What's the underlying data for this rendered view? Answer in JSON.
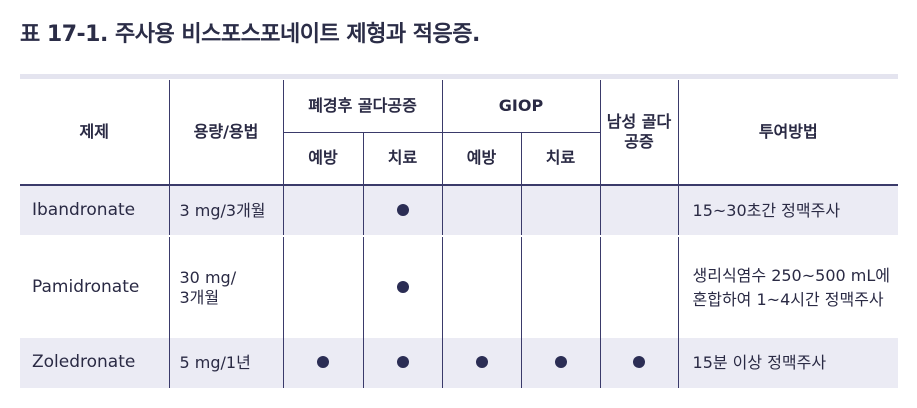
{
  "caption": "표 17-1. 주사용 비스포스포네이트 제형과 적응증.",
  "headers": {
    "agent": "제제",
    "dose": "용량/용법",
    "pmo": "폐경후 골다공증",
    "giop": "GIOP",
    "male": "남성 골다공증",
    "admin": "투여방법",
    "prevent": "예방",
    "treat": "치료"
  },
  "rows": [
    {
      "name": "Ibandronate",
      "dose": "3 mg/3개월",
      "pmo_prevent": false,
      "pmo_treat": true,
      "giop_prevent": false,
      "giop_treat": false,
      "male": false,
      "admin": "15~30초간 정맥주사"
    },
    {
      "name": "Pamidronate",
      "dose": "30 mg/ 3개월",
      "pmo_prevent": false,
      "pmo_treat": true,
      "giop_prevent": false,
      "giop_treat": false,
      "male": false,
      "admin": "생리식염수 250~500 mL에 혼합하여 1~4시간 정맥주사"
    },
    {
      "name": "Zoledronate",
      "dose": "5 mg/1년",
      "pmo_prevent": true,
      "pmo_treat": true,
      "giop_prevent": true,
      "giop_treat": true,
      "male": true,
      "admin": "15분 이상 정맥주사"
    }
  ],
  "colors": {
    "header_text": "#2a2a44",
    "row_shade": "#ebebf4",
    "rule": "#3a3a6a",
    "dot": "#2b2d54"
  }
}
